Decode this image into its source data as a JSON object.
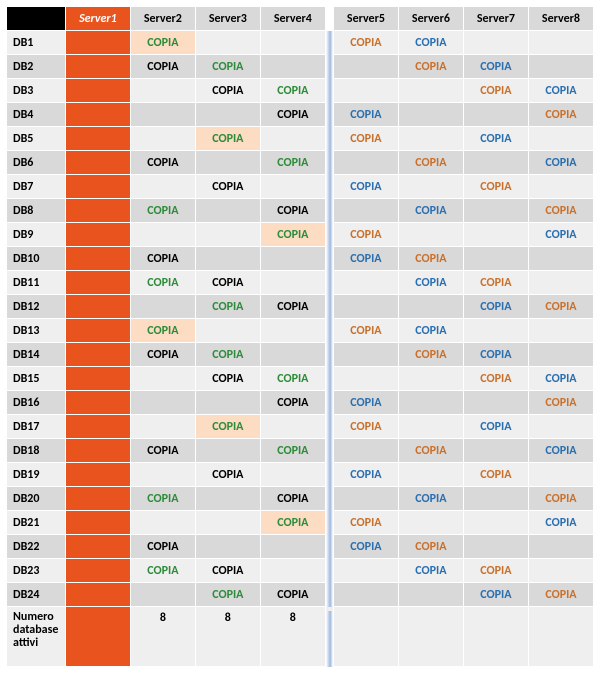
{
  "headers": {
    "corner": "",
    "server1": "Server1",
    "server2": "Server2",
    "server3": "Server3",
    "server4": "Server4",
    "server5": "Server5",
    "server6": "Server6",
    "server7": "Server7",
    "server8": "Server8"
  },
  "word": "COPIA",
  "footer": {
    "label": "Numero database attivi",
    "s2": "8",
    "s3": "8",
    "s4": "8",
    "s5": "",
    "s6": "",
    "s7": "",
    "s8": ""
  },
  "colors": {
    "cell_black": "#000000",
    "cell_green": "#2e8b3a",
    "cell_orange": "#c9712c",
    "cell_blue": "#2b6fb0",
    "bg_peach": "#fcdcc2",
    "bg_server1": "#e8531e",
    "bg_row_light": "#efefef",
    "bg_row_dark": "#d9d9d9",
    "hdr_black": "#000000",
    "hdr_orange": "#e8531e",
    "hdr_grey": "#d9d9d9",
    "gap_blue": "#9fb9e0"
  },
  "row_labels": [
    "DB1",
    "DB2",
    "DB3",
    "DB4",
    "DB5",
    "DB6",
    "DB7",
    "DB8",
    "DB9",
    "DB10",
    "DB11",
    "DB12",
    "DB13",
    "DB14",
    "DB15",
    "DB16",
    "DB17",
    "DB18",
    "DB19",
    "DB20",
    "DB21",
    "DB22",
    "DB23",
    "DB24"
  ],
  "rows": [
    {
      "s2": {
        "bg": "peach",
        "txt": "green"
      },
      "s3": {},
      "s4": {},
      "s5": {
        "txt": "orange"
      },
      "s6": {
        "txt": "blue"
      },
      "s7": {},
      "s8": {}
    },
    {
      "s2": {
        "txt": "black"
      },
      "s3": {
        "txt": "green"
      },
      "s4": {},
      "s5": {},
      "s6": {
        "txt": "orange"
      },
      "s7": {
        "txt": "blue"
      },
      "s8": {}
    },
    {
      "s2": {},
      "s3": {
        "txt": "black"
      },
      "s4": {
        "txt": "green"
      },
      "s5": {},
      "s6": {},
      "s7": {
        "txt": "orange"
      },
      "s8": {
        "txt": "blue"
      }
    },
    {
      "s2": {},
      "s3": {},
      "s4": {
        "txt": "black"
      },
      "s5": {
        "txt": "blue"
      },
      "s6": {},
      "s7": {},
      "s8": {
        "txt": "orange"
      }
    },
    {
      "s2": {},
      "s3": {
        "bg": "peach",
        "txt": "green"
      },
      "s4": {},
      "s5": {
        "txt": "orange"
      },
      "s6": {},
      "s7": {
        "txt": "blue"
      },
      "s8": {}
    },
    {
      "s2": {
        "txt": "black"
      },
      "s3": {},
      "s4": {
        "txt": "green"
      },
      "s5": {},
      "s6": {
        "txt": "orange"
      },
      "s7": {},
      "s8": {
        "txt": "blue"
      }
    },
    {
      "s2": {},
      "s3": {
        "txt": "black"
      },
      "s4": {},
      "s5": {
        "txt": "blue"
      },
      "s6": {},
      "s7": {
        "txt": "orange"
      },
      "s8": {}
    },
    {
      "s2": {
        "txt": "green"
      },
      "s3": {},
      "s4": {
        "txt": "black"
      },
      "s5": {},
      "s6": {
        "txt": "blue"
      },
      "s7": {},
      "s8": {
        "txt": "orange"
      }
    },
    {
      "s2": {},
      "s3": {},
      "s4": {
        "bg": "peach",
        "txt": "green"
      },
      "s5": {
        "txt": "orange"
      },
      "s6": {},
      "s7": {},
      "s8": {
        "txt": "blue"
      }
    },
    {
      "s2": {
        "txt": "black"
      },
      "s3": {},
      "s4": {},
      "s5": {
        "txt": "blue"
      },
      "s6": {
        "txt": "orange"
      },
      "s7": {},
      "s8": {}
    },
    {
      "s2": {
        "txt": "green"
      },
      "s3": {
        "txt": "black"
      },
      "s4": {},
      "s5": {},
      "s6": {
        "txt": "blue"
      },
      "s7": {
        "txt": "orange"
      },
      "s8": {}
    },
    {
      "s2": {},
      "s3": {
        "txt": "green"
      },
      "s4": {
        "txt": "black"
      },
      "s5": {},
      "s6": {},
      "s7": {
        "txt": "blue"
      },
      "s8": {
        "txt": "orange"
      }
    },
    {
      "s2": {
        "bg": "peach",
        "txt": "green"
      },
      "s3": {},
      "s4": {},
      "s5": {
        "txt": "orange"
      },
      "s6": {
        "txt": "blue"
      },
      "s7": {},
      "s8": {}
    },
    {
      "s2": {
        "txt": "black"
      },
      "s3": {
        "txt": "green"
      },
      "s4": {},
      "s5": {},
      "s6": {
        "txt": "orange"
      },
      "s7": {
        "txt": "blue"
      },
      "s8": {}
    },
    {
      "s2": {},
      "s3": {
        "txt": "black"
      },
      "s4": {
        "txt": "green"
      },
      "s5": {},
      "s6": {},
      "s7": {
        "txt": "orange"
      },
      "s8": {
        "txt": "blue"
      }
    },
    {
      "s2": {},
      "s3": {},
      "s4": {
        "txt": "black"
      },
      "s5": {
        "txt": "blue"
      },
      "s6": {},
      "s7": {},
      "s8": {
        "txt": "orange"
      }
    },
    {
      "s2": {},
      "s3": {
        "bg": "peach",
        "txt": "green"
      },
      "s4": {},
      "s5": {
        "txt": "orange"
      },
      "s6": {},
      "s7": {
        "txt": "blue"
      },
      "s8": {}
    },
    {
      "s2": {
        "txt": "black"
      },
      "s3": {},
      "s4": {
        "txt": "green"
      },
      "s5": {},
      "s6": {
        "txt": "orange"
      },
      "s7": {},
      "s8": {
        "txt": "blue"
      }
    },
    {
      "s2": {},
      "s3": {
        "txt": "black"
      },
      "s4": {},
      "s5": {
        "txt": "blue"
      },
      "s6": {},
      "s7": {
        "txt": "orange"
      },
      "s8": {}
    },
    {
      "s2": {
        "txt": "green"
      },
      "s3": {},
      "s4": {
        "txt": "black"
      },
      "s5": {},
      "s6": {
        "txt": "blue"
      },
      "s7": {},
      "s8": {
        "txt": "orange"
      }
    },
    {
      "s2": {},
      "s3": {},
      "s4": {
        "bg": "peach",
        "txt": "green"
      },
      "s5": {
        "txt": "orange"
      },
      "s6": {},
      "s7": {},
      "s8": {
        "txt": "blue"
      }
    },
    {
      "s2": {
        "txt": "black"
      },
      "s3": {},
      "s4": {},
      "s5": {
        "txt": "blue"
      },
      "s6": {
        "txt": "orange"
      },
      "s7": {},
      "s8": {}
    },
    {
      "s2": {
        "txt": "green"
      },
      "s3": {
        "txt": "black"
      },
      "s4": {},
      "s5": {},
      "s6": {
        "txt": "blue"
      },
      "s7": {
        "txt": "orange"
      },
      "s8": {}
    },
    {
      "s2": {},
      "s3": {
        "txt": "green"
      },
      "s4": {
        "txt": "black"
      },
      "s5": {},
      "s6": {},
      "s7": {
        "txt": "blue"
      },
      "s8": {
        "txt": "orange"
      }
    }
  ]
}
